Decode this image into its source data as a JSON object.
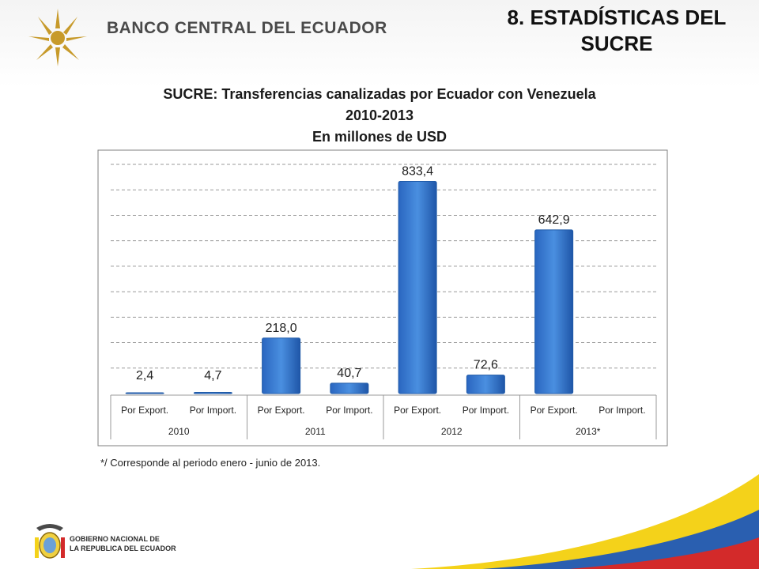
{
  "header": {
    "bank_name": "BANCO CENTRAL DEL ECUADOR",
    "slide_title_line1": "8. ESTADÍSTICAS DEL",
    "slide_title_line2": "SUCRE"
  },
  "chart_data": {
    "type": "bar",
    "title": "SUCRE: Transferencias canalizadas por Ecuador con Venezuela",
    "subtitle": "2010-2013",
    "units": "En millones de USD",
    "groups": [
      "2010",
      "2011",
      "2012",
      "2013*"
    ],
    "categories": [
      "Por Export.",
      "Por Import.",
      "Por Export.",
      "Por Import.",
      "Por Export.",
      "Por Import.",
      "Por Export.",
      "Por Import."
    ],
    "values": [
      2.4,
      4.7,
      218.0,
      40.7,
      833.4,
      72.6,
      642.9,
      null
    ],
    "value_labels": [
      "2,4",
      "4,7",
      "218,0",
      "40,7",
      "833,4",
      "72,6",
      "642,9",
      ""
    ],
    "ylim": [
      0,
      900
    ],
    "grid": true,
    "legend": "none",
    "colors": {
      "bar": "#3a7fd5",
      "bar_dark": "#1f5aa8",
      "grid": "#9a9a9a"
    }
  },
  "footnote": "*/ Corresponde al periodo enero - junio de 2013.",
  "footer": {
    "gov_line1": "GOBIERNO NACIONAL DE",
    "gov_line2": "LA REPUBLICA DEL ECUADOR"
  }
}
